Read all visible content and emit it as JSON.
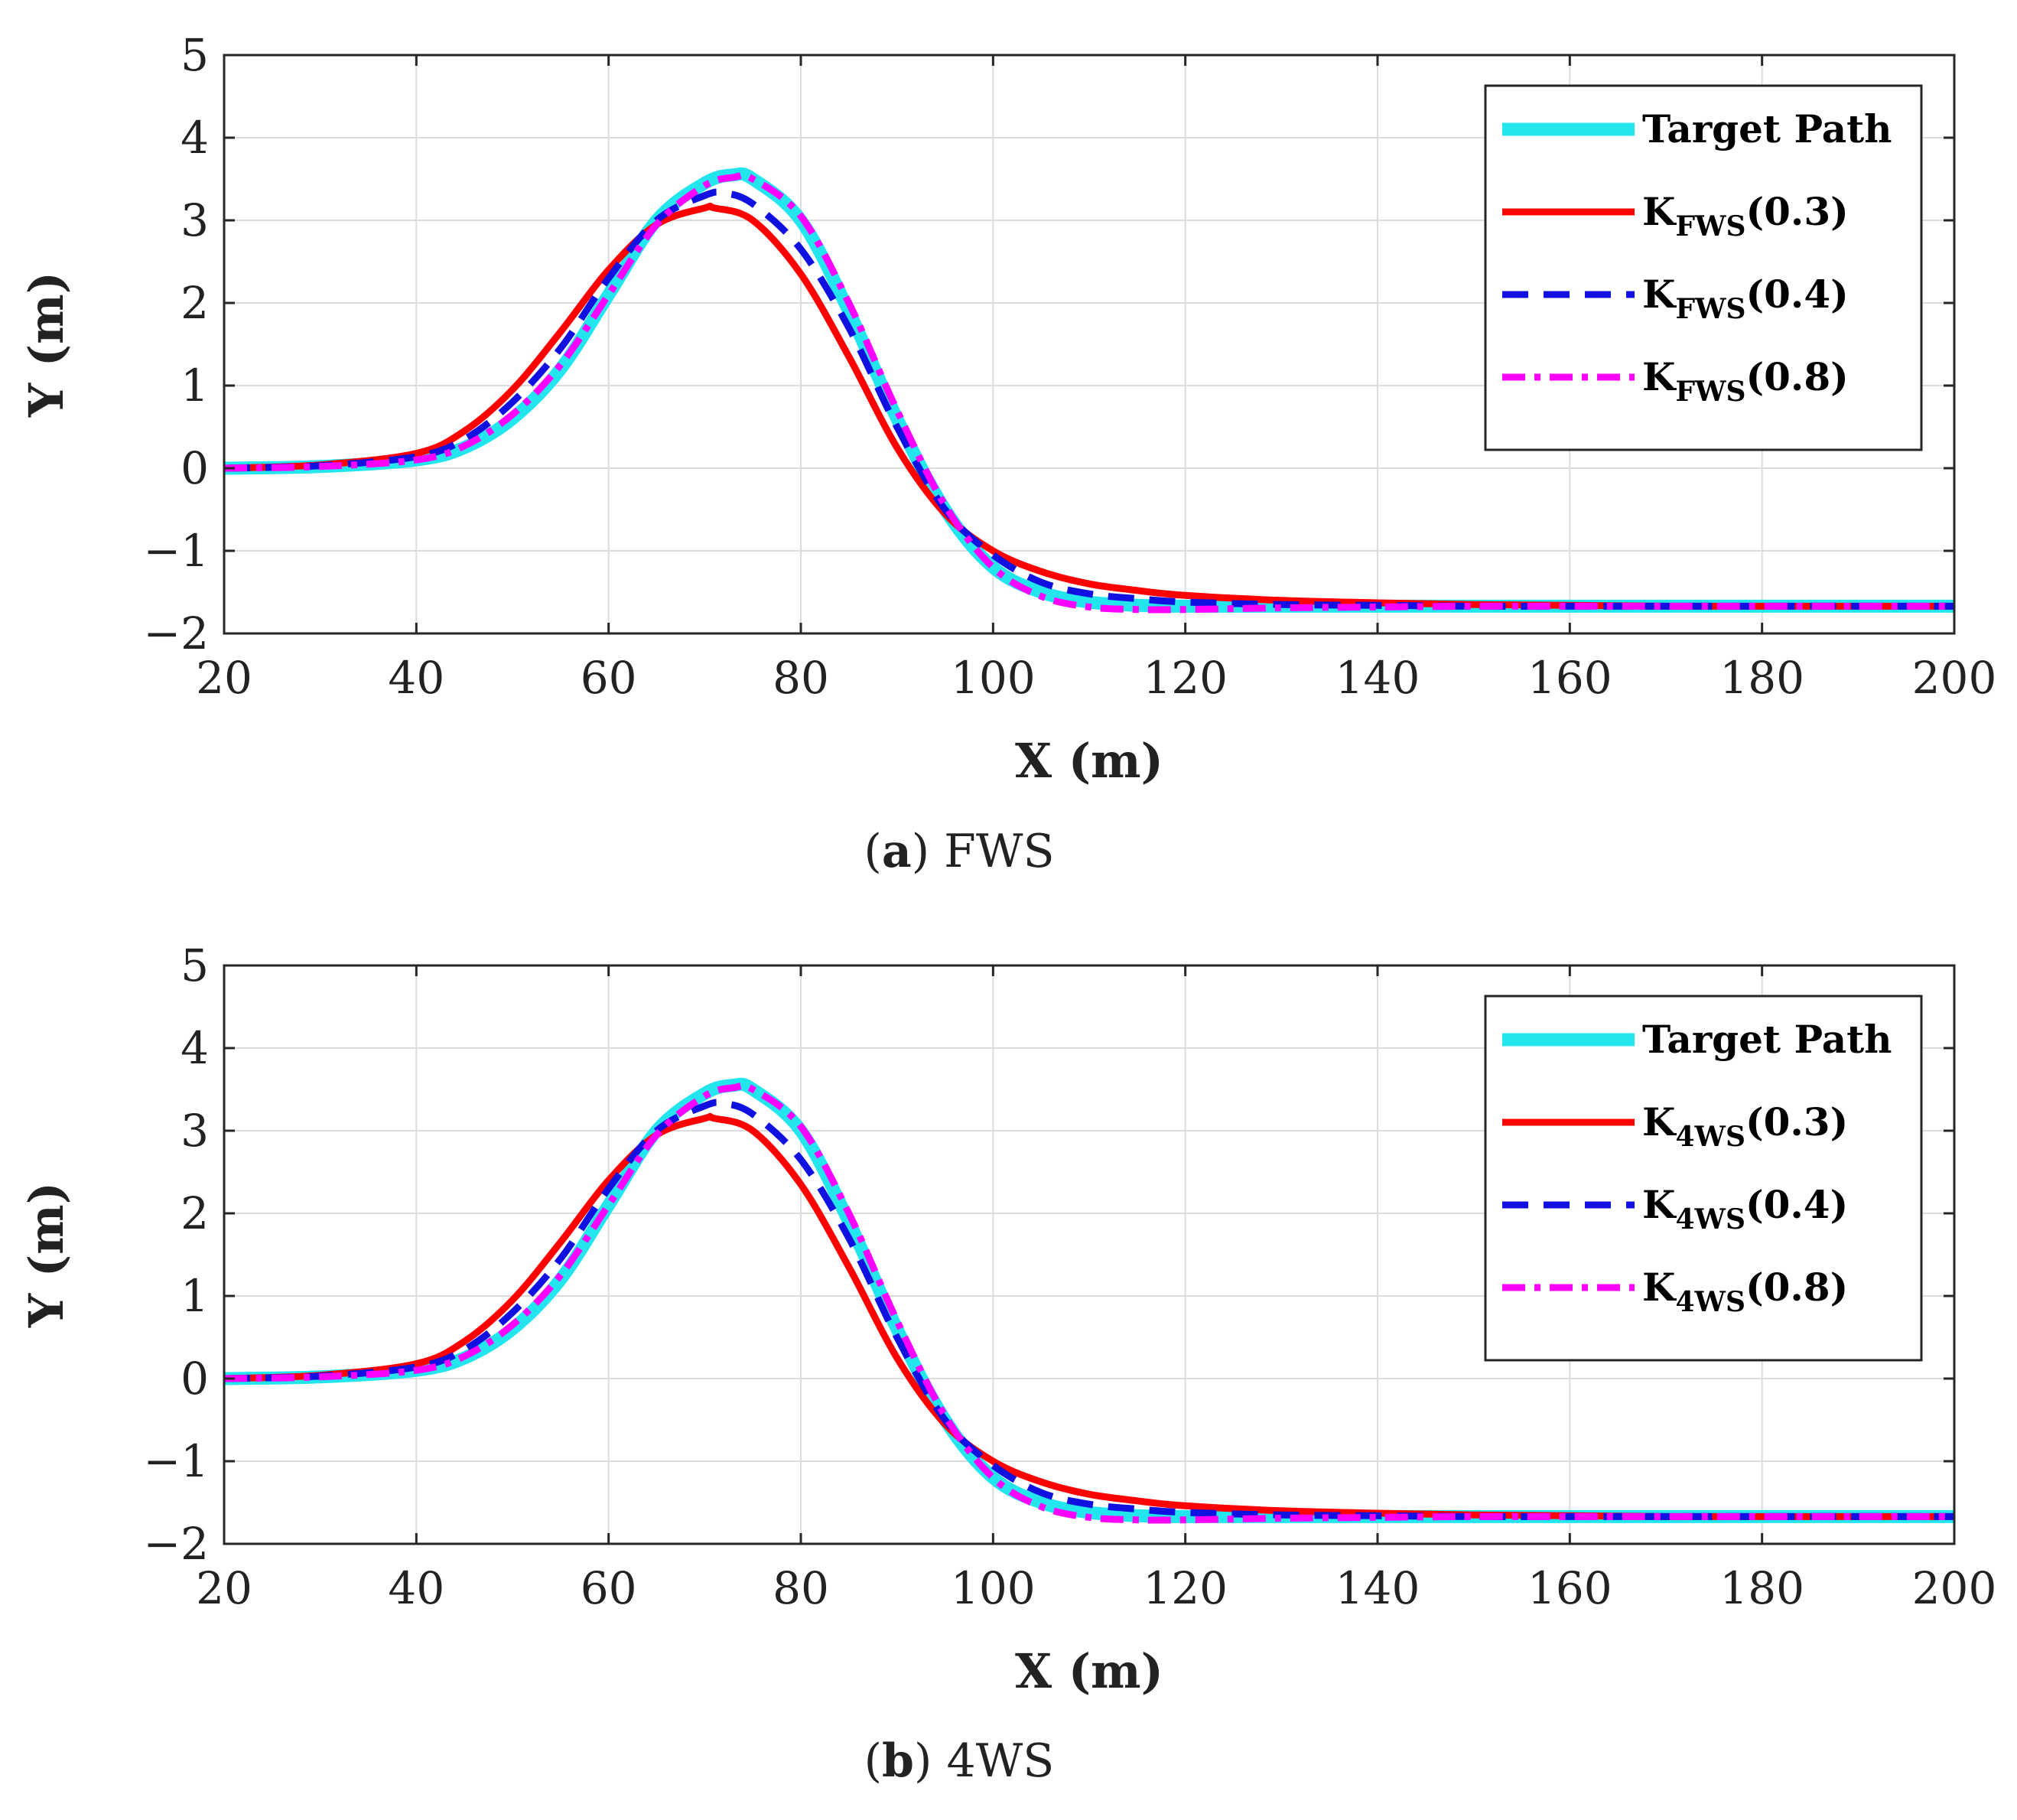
{
  "chart_data": [
    {
      "type": "line",
      "caption_label": "a",
      "caption_text": "FWS",
      "xlabel": "X (m)",
      "ylabel": "Y (m)",
      "xlim": [
        20,
        200
      ],
      "ylim": [
        -2,
        5
      ],
      "xticks": [
        20,
        40,
        60,
        80,
        100,
        120,
        140,
        160,
        180,
        200
      ],
      "yticks": [
        -2,
        -1,
        0,
        1,
        2,
        3,
        4,
        5
      ],
      "grid": true,
      "legend_position": "top-right",
      "series": [
        {
          "name": "Target Path",
          "color": "#22e5ee",
          "style": "solid-thick",
          "x": [
            20,
            30,
            40,
            45,
            50,
            55,
            60,
            65,
            70,
            73,
            75,
            80,
            85,
            90,
            95,
            100,
            105,
            110,
            115,
            120,
            130,
            140,
            150,
            160,
            170,
            180,
            190,
            200
          ],
          "y": [
            0,
            0.02,
            0.1,
            0.25,
            0.6,
            1.2,
            2.1,
            3.0,
            3.45,
            3.55,
            3.5,
            3.0,
            1.9,
            0.6,
            -0.5,
            -1.2,
            -1.5,
            -1.62,
            -1.66,
            -1.67,
            -1.67,
            -1.67,
            -1.67,
            -1.67,
            -1.67,
            -1.67,
            -1.67,
            -1.67
          ]
        },
        {
          "name": "K_FWS(0.3)",
          "label_main": "K",
          "label_sub": "FWS",
          "label_tail": "(0.3)",
          "color": "#ff0000",
          "style": "solid",
          "x": [
            20,
            30,
            40,
            45,
            50,
            55,
            60,
            65,
            70,
            71,
            75,
            80,
            85,
            90,
            95,
            100,
            105,
            110,
            115,
            120,
            130,
            140,
            150,
            160,
            170,
            180,
            190,
            200
          ],
          "y": [
            0,
            0.04,
            0.18,
            0.45,
            0.95,
            1.65,
            2.4,
            2.95,
            3.15,
            3.15,
            3.0,
            2.35,
            1.35,
            0.25,
            -0.55,
            -1.0,
            -1.25,
            -1.4,
            -1.48,
            -1.54,
            -1.6,
            -1.63,
            -1.65,
            -1.66,
            -1.67,
            -1.67,
            -1.67,
            -1.67
          ]
        },
        {
          "name": "K_FWS(0.4)",
          "label_main": "K",
          "label_sub": "FWS",
          "label_tail": "(0.4)",
          "color": "#1010e0",
          "style": "dashed",
          "x": [
            20,
            30,
            40,
            45,
            50,
            55,
            60,
            65,
            70,
            72,
            75,
            80,
            85,
            90,
            95,
            100,
            105,
            110,
            115,
            120,
            130,
            140,
            150,
            160,
            170,
            180,
            190,
            200
          ],
          "y": [
            0,
            0.03,
            0.14,
            0.35,
            0.8,
            1.45,
            2.3,
            3.0,
            3.3,
            3.33,
            3.2,
            2.65,
            1.7,
            0.5,
            -0.5,
            -1.05,
            -1.38,
            -1.52,
            -1.58,
            -1.62,
            -1.65,
            -1.66,
            -1.67,
            -1.67,
            -1.67,
            -1.67,
            -1.67,
            -1.67
          ]
        },
        {
          "name": "K_FWS(0.8)",
          "label_main": "K",
          "label_sub": "FWS",
          "label_tail": "(0.8)",
          "color": "#ff00ff",
          "style": "dashdot",
          "x": [
            20,
            30,
            40,
            45,
            50,
            55,
            60,
            65,
            70,
            73,
            75,
            80,
            85,
            90,
            95,
            100,
            105,
            110,
            115,
            120,
            130,
            140,
            150,
            160,
            170,
            180,
            190,
            200
          ],
          "y": [
            0,
            0.02,
            0.1,
            0.27,
            0.65,
            1.25,
            2.1,
            2.95,
            3.42,
            3.52,
            3.5,
            3.05,
            2.0,
            0.7,
            -0.45,
            -1.2,
            -1.55,
            -1.68,
            -1.71,
            -1.71,
            -1.69,
            -1.68,
            -1.67,
            -1.67,
            -1.67,
            -1.67,
            -1.67,
            -1.67
          ]
        }
      ]
    },
    {
      "type": "line",
      "caption_label": "b",
      "caption_text": "4WS",
      "xlabel": "X (m)",
      "ylabel": "Y (m)",
      "xlim": [
        20,
        200
      ],
      "ylim": [
        -2,
        5
      ],
      "xticks": [
        20,
        40,
        60,
        80,
        100,
        120,
        140,
        160,
        180,
        200
      ],
      "yticks": [
        -2,
        -1,
        0,
        1,
        2,
        3,
        4,
        5
      ],
      "grid": true,
      "legend_position": "top-right",
      "series": [
        {
          "name": "Target Path",
          "color": "#22e5ee",
          "style": "solid-thick",
          "x": [
            20,
            30,
            40,
            45,
            50,
            55,
            60,
            65,
            70,
            73,
            75,
            80,
            85,
            90,
            95,
            100,
            105,
            110,
            115,
            120,
            130,
            140,
            150,
            160,
            170,
            180,
            190,
            200
          ],
          "y": [
            0,
            0.02,
            0.1,
            0.25,
            0.6,
            1.2,
            2.1,
            3.0,
            3.45,
            3.55,
            3.5,
            3.0,
            1.9,
            0.6,
            -0.5,
            -1.2,
            -1.5,
            -1.62,
            -1.66,
            -1.67,
            -1.67,
            -1.67,
            -1.67,
            -1.67,
            -1.67,
            -1.67,
            -1.67,
            -1.67
          ]
        },
        {
          "name": "K_4WS(0.3)",
          "label_main": "K",
          "label_sub": "4WS",
          "label_tail": "(0.3)",
          "color": "#ff0000",
          "style": "solid",
          "x": [
            20,
            30,
            40,
            45,
            50,
            55,
            60,
            65,
            70,
            71,
            75,
            80,
            85,
            90,
            95,
            100,
            105,
            110,
            115,
            120,
            130,
            140,
            150,
            160,
            170,
            180,
            190,
            200
          ],
          "y": [
            0,
            0.04,
            0.18,
            0.45,
            0.95,
            1.65,
            2.4,
            2.95,
            3.15,
            3.15,
            3.0,
            2.35,
            1.35,
            0.25,
            -0.55,
            -1.0,
            -1.25,
            -1.4,
            -1.48,
            -1.54,
            -1.6,
            -1.63,
            -1.65,
            -1.66,
            -1.67,
            -1.67,
            -1.67,
            -1.67
          ]
        },
        {
          "name": "K_4WS(0.4)",
          "label_main": "K",
          "label_sub": "4WS",
          "label_tail": "(0.4)",
          "color": "#1010e0",
          "style": "dashed",
          "x": [
            20,
            30,
            40,
            45,
            50,
            55,
            60,
            65,
            70,
            72,
            75,
            80,
            85,
            90,
            95,
            100,
            105,
            110,
            115,
            120,
            130,
            140,
            150,
            160,
            170,
            180,
            190,
            200
          ],
          "y": [
            0,
            0.03,
            0.14,
            0.35,
            0.8,
            1.45,
            2.3,
            3.0,
            3.3,
            3.33,
            3.2,
            2.65,
            1.7,
            0.5,
            -0.5,
            -1.05,
            -1.38,
            -1.52,
            -1.58,
            -1.62,
            -1.65,
            -1.66,
            -1.67,
            -1.67,
            -1.67,
            -1.67,
            -1.67,
            -1.67
          ]
        },
        {
          "name": "K_4WS(0.8)",
          "label_main": "K",
          "label_sub": "4WS",
          "label_tail": "(0.8)",
          "color": "#ff00ff",
          "style": "dashdot",
          "x": [
            20,
            30,
            40,
            45,
            50,
            55,
            60,
            65,
            70,
            73,
            75,
            80,
            85,
            90,
            95,
            100,
            105,
            110,
            115,
            120,
            130,
            140,
            150,
            160,
            170,
            180,
            190,
            200
          ],
          "y": [
            0,
            0.02,
            0.1,
            0.27,
            0.65,
            1.25,
            2.1,
            2.95,
            3.42,
            3.52,
            3.5,
            3.05,
            2.0,
            0.7,
            -0.45,
            -1.2,
            -1.55,
            -1.68,
            -1.71,
            -1.71,
            -1.69,
            -1.68,
            -1.67,
            -1.67,
            -1.67,
            -1.67,
            -1.67,
            -1.67
          ]
        }
      ]
    }
  ]
}
